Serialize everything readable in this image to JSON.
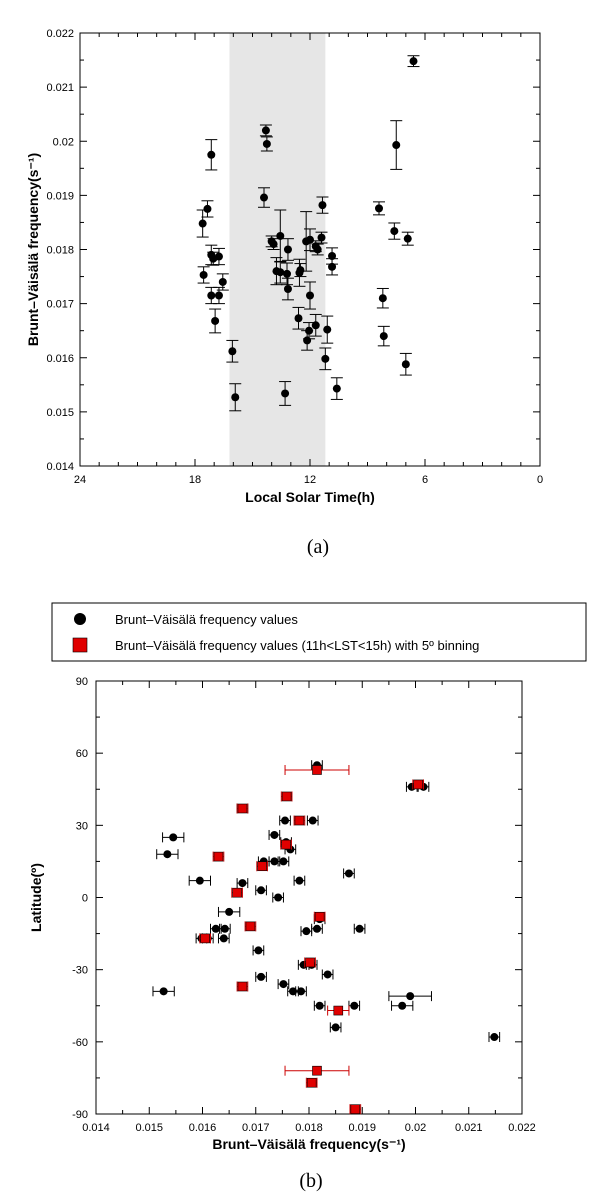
{
  "chart_data": [
    {
      "panel": "a",
      "type": "scatter",
      "caption": "(a)",
      "xlabel": "Local Solar Time(h)",
      "ylabel": "Brunt–Väisälä frequency(s⁻¹)",
      "xlim": [
        24,
        0
      ],
      "ylim": [
        0.014,
        0.022
      ],
      "xticks": [
        "24",
        "18",
        "12",
        "6",
        "0"
      ],
      "yticks": [
        "0.014",
        "0.015",
        "0.016",
        "0.017",
        "0.018",
        "0.019",
        "0.02",
        "0.021",
        "0.022"
      ],
      "shaded_region": {
        "x": [
          11.2,
          16.2
        ],
        "color": "#e6e6e6"
      },
      "colors": {
        "points": "#000000"
      },
      "points": [
        {
          "x": 6.6,
          "y": 0.02148,
          "e": 0.0001
        },
        {
          "x": 7.5,
          "y": 0.01993,
          "e": 0.00045
        },
        {
          "x": 8.4,
          "y": 0.01876,
          "e": 0.00012
        },
        {
          "x": 7.6,
          "y": 0.01834,
          "e": 0.00015
        },
        {
          "x": 6.9,
          "y": 0.0182,
          "e": 0.00012
        },
        {
          "x": 8.2,
          "y": 0.0171,
          "e": 0.00018
        },
        {
          "x": 8.15,
          "y": 0.0164,
          "e": 0.00018
        },
        {
          "x": 7.0,
          "y": 0.01588,
          "e": 0.0002
        },
        {
          "x": 17.6,
          "y": 0.01848,
          "e": 0.00025
        },
        {
          "x": 17.35,
          "y": 0.01875,
          "e": 0.00015
        },
        {
          "x": 17.15,
          "y": 0.01975,
          "e": 0.00028
        },
        {
          "x": 17.55,
          "y": 0.01753,
          "e": 0.00015
        },
        {
          "x": 17.15,
          "y": 0.0179,
          "e": 0.00018
        },
        {
          "x": 17.05,
          "y": 0.01783,
          "e": 0.00012
        },
        {
          "x": 16.75,
          "y": 0.01787,
          "e": 0.00015
        },
        {
          "x": 16.55,
          "y": 0.0174,
          "e": 0.00015
        },
        {
          "x": 17.15,
          "y": 0.01715,
          "e": 0.00015
        },
        {
          "x": 16.75,
          "y": 0.01715,
          "e": 0.00015
        },
        {
          "x": 16.95,
          "y": 0.01668,
          "e": 0.00022
        },
        {
          "x": 16.05,
          "y": 0.01612,
          "e": 0.0002
        },
        {
          "x": 15.9,
          "y": 0.01527,
          "e": 0.00025
        },
        {
          "x": 14.3,
          "y": 0.0202,
          "e": 0.0001
        },
        {
          "x": 14.25,
          "y": 0.01995,
          "e": 0.00013
        },
        {
          "x": 14.4,
          "y": 0.01896,
          "e": 0.00018
        },
        {
          "x": 14.0,
          "y": 0.01815,
          "e": 0.0001
        },
        {
          "x": 13.9,
          "y": 0.0181,
          "e": 0.0001
        },
        {
          "x": 13.55,
          "y": 0.01825,
          "e": 0.00048
        },
        {
          "x": 13.75,
          "y": 0.0176,
          "e": 0.00025
        },
        {
          "x": 13.55,
          "y": 0.01758,
          "e": 0.0002
        },
        {
          "x": 13.15,
          "y": 0.018,
          "e": 0.0002
        },
        {
          "x": 13.2,
          "y": 0.01755,
          "e": 0.0002
        },
        {
          "x": 13.15,
          "y": 0.01727,
          "e": 0.0002
        },
        {
          "x": 12.55,
          "y": 0.01757,
          "e": 0.00025
        },
        {
          "x": 12.5,
          "y": 0.01762,
          "e": 0.00012
        },
        {
          "x": 12.6,
          "y": 0.01673,
          "e": 0.0002
        },
        {
          "x": 12.2,
          "y": 0.01815,
          "e": 0.00055
        },
        {
          "x": 12.0,
          "y": 0.01818,
          "e": 0.0002
        },
        {
          "x": 11.7,
          "y": 0.01806,
          "e": 0.0001
        },
        {
          "x": 11.6,
          "y": 0.018,
          "e": 0.0001
        },
        {
          "x": 11.4,
          "y": 0.01822,
          "e": 0.0001
        },
        {
          "x": 11.35,
          "y": 0.01882,
          "e": 0.00015
        },
        {
          "x": 12.0,
          "y": 0.01715,
          "e": 0.00025
        },
        {
          "x": 12.05,
          "y": 0.0165,
          "e": 0.00015
        },
        {
          "x": 12.15,
          "y": 0.01632,
          "e": 0.00018
        },
        {
          "x": 11.7,
          "y": 0.0166,
          "e": 0.0002
        },
        {
          "x": 11.1,
          "y": 0.01652,
          "e": 0.00025
        },
        {
          "x": 11.2,
          "y": 0.01598,
          "e": 0.0002
        },
        {
          "x": 10.85,
          "y": 0.01788,
          "e": 0.00015
        },
        {
          "x": 10.85,
          "y": 0.01768,
          "e": 0.00015
        },
        {
          "x": 10.6,
          "y": 0.01543,
          "e": 0.0002
        },
        {
          "x": 13.3,
          "y": 0.01534,
          "e": 0.00022
        }
      ]
    },
    {
      "panel": "b",
      "type": "scatter",
      "caption": "(b)",
      "xlabel": "Brunt–Väisälä frequency(s⁻¹)",
      "ylabel": "Latitude(º)",
      "xlim": [
        0.014,
        0.022
      ],
      "ylim": [
        -90,
        90
      ],
      "xticks": [
        "0.014",
        "0.015",
        "0.016",
        "0.017",
        "0.018",
        "0.019",
        "0.02",
        "0.021",
        "0.022"
      ],
      "yticks": [
        "90",
        "60",
        "30",
        "0",
        "-30",
        "-60",
        "-90"
      ],
      "legend": {
        "placement": "top",
        "entries": [
          {
            "label": "Brunt–Väisälä frequency values",
            "marker": "circle",
            "color": "#000000"
          },
          {
            "label": "Brunt–Väisälä frequency values (11h<LST<15h) with 5º binning",
            "marker": "square",
            "color": "#e00000"
          }
        ]
      },
      "series": [
        {
          "marker": "circle",
          "color": "#000000",
          "points": [
            {
              "x": 0.01815,
              "y": 55,
              "e": 0.0001
            },
            {
              "x": 0.01993,
              "y": 46,
              "e": 0.0001
            },
            {
              "x": 0.02015,
              "y": 46,
              "e": 0.0001
            },
            {
              "x": 0.01675,
              "y": 37,
              "e": 0.0001
            },
            {
              "x": 0.01755,
              "y": 32,
              "e": 0.0001
            },
            {
              "x": 0.01807,
              "y": 32,
              "e": 0.0001
            },
            {
              "x": 0.01545,
              "y": 25,
              "e": 0.0002
            },
            {
              "x": 0.01735,
              "y": 26,
              "e": 0.0001
            },
            {
              "x": 0.01757,
              "y": 23,
              "e": 0.0001
            },
            {
              "x": 0.01765,
              "y": 20,
              "e": 0.0001
            },
            {
              "x": 0.01534,
              "y": 18,
              "e": 0.0002
            },
            {
              "x": 0.01715,
              "y": 15,
              "e": 0.0001
            },
            {
              "x": 0.01735,
              "y": 15,
              "e": 0.0001
            },
            {
              "x": 0.01752,
              "y": 15,
              "e": 0.0001
            },
            {
              "x": 0.01875,
              "y": 10,
              "e": 0.0001
            },
            {
              "x": 0.01595,
              "y": 7,
              "e": 0.0002
            },
            {
              "x": 0.01675,
              "y": 6,
              "e": 0.0001
            },
            {
              "x": 0.01782,
              "y": 7,
              "e": 0.0001
            },
            {
              "x": 0.0171,
              "y": 3,
              "e": 0.0001
            },
            {
              "x": 0.01742,
              "y": 0,
              "e": 0.0001
            },
            {
              "x": 0.0165,
              "y": -6,
              "e": 0.0002
            },
            {
              "x": 0.0182,
              "y": -9,
              "e": 0.0001
            },
            {
              "x": 0.01895,
              "y": -13,
              "e": 0.0001
            },
            {
              "x": 0.01815,
              "y": -13,
              "e": 0.0001
            },
            {
              "x": 0.01625,
              "y": -13,
              "e": 0.0001
            },
            {
              "x": 0.01642,
              "y": -13,
              "e": 0.0001
            },
            {
              "x": 0.01795,
              "y": -14,
              "e": 0.0001
            },
            {
              "x": 0.0161,
              "y": -17,
              "e": 0.0001
            },
            {
              "x": 0.0164,
              "y": -17,
              "e": 0.0001
            },
            {
              "x": 0.01598,
              "y": -17,
              "e": 0.0001
            },
            {
              "x": 0.01705,
              "y": -22,
              "e": 0.0001
            },
            {
              "x": 0.0179,
              "y": -28,
              "e": 0.0001
            },
            {
              "x": 0.01805,
              "y": -28,
              "e": 0.0001
            },
            {
              "x": 0.01835,
              "y": -32,
              "e": 0.0001
            },
            {
              "x": 0.0171,
              "y": -33,
              "e": 0.0001
            },
            {
              "x": 0.01527,
              "y": -39,
              "e": 0.0002
            },
            {
              "x": 0.01752,
              "y": -36,
              "e": 0.0001
            },
            {
              "x": 0.0177,
              "y": -39,
              "e": 0.0001
            },
            {
              "x": 0.01785,
              "y": -39,
              "e": 0.0001
            },
            {
              "x": 0.0199,
              "y": -41,
              "e": 0.0004
            },
            {
              "x": 0.0182,
              "y": -45,
              "e": 0.0001
            },
            {
              "x": 0.01885,
              "y": -45,
              "e": 0.0001
            },
            {
              "x": 0.01975,
              "y": -45,
              "e": 0.0002
            },
            {
              "x": 0.0185,
              "y": -54,
              "e": 0.0001
            },
            {
              "x": 0.02148,
              "y": -58,
              "e": 0.0001
            }
          ]
        },
        {
          "marker": "square",
          "color": "#e00000",
          "points": [
            {
              "x": 0.01815,
              "y": 53,
              "e": 0.0006
            },
            {
              "x": 0.02005,
              "y": 47,
              "e": 0.0001
            },
            {
              "x": 0.01675,
              "y": 37,
              "e": 0.0001
            },
            {
              "x": 0.01758,
              "y": 42,
              "e": 0.0001
            },
            {
              "x": 0.01782,
              "y": 32,
              "e": 0.0001
            },
            {
              "x": 0.0163,
              "y": 17,
              "e": 0.0001
            },
            {
              "x": 0.01757,
              "y": 22,
              "e": 0.0001
            },
            {
              "x": 0.01712,
              "y": 13,
              "e": 0.0001
            },
            {
              "x": 0.01665,
              "y": 2,
              "e": 0.0001
            },
            {
              "x": 0.0182,
              "y": -8,
              "e": 0.0001
            },
            {
              "x": 0.0169,
              "y": -12,
              "e": 0.0001
            },
            {
              "x": 0.01605,
              "y": -17,
              "e": 0.0001
            },
            {
              "x": 0.01802,
              "y": -27,
              "e": 0.0001
            },
            {
              "x": 0.01675,
              "y": -37,
              "e": 0.0001
            },
            {
              "x": 0.01855,
              "y": -47,
              "e": 0.0002
            },
            {
              "x": 0.01815,
              "y": -72,
              "e": 0.0006
            },
            {
              "x": 0.01805,
              "y": -77,
              "e": 0.0001
            },
            {
              "x": 0.01887,
              "y": -88,
              "e": 0.0001
            }
          ]
        }
      ]
    }
  ]
}
